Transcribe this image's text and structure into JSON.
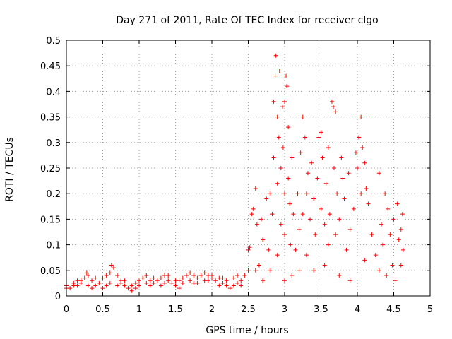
{
  "chart_data": {
    "type": "scatter",
    "title": "Day 271 of 2011, Rate Of TEC Index for receiver clgo",
    "xlabel": "GPS time / hours",
    "ylabel": "ROTI / TECUs",
    "xlim": [
      0,
      5
    ],
    "ylim": [
      0,
      0.5
    ],
    "xticks": [
      "0",
      "0.5",
      "1",
      "1.5",
      "2",
      "2.5",
      "3",
      "3.5",
      "4",
      "4.5",
      "5"
    ],
    "yticks": [
      "0",
      "0.05",
      "0.1",
      "0.15",
      "0.2",
      "0.25",
      "0.3",
      "0.35",
      "0.4",
      "0.45",
      "0.5"
    ],
    "grid": true,
    "marker": "+",
    "color": "#ff0000",
    "series": [
      {
        "name": "ROTI",
        "points": [
          [
            0.0,
            0.02
          ],
          [
            0.05,
            0.015
          ],
          [
            0.1,
            0.025
          ],
          [
            0.15,
            0.02
          ],
          [
            0.2,
            0.03
          ],
          [
            0.25,
            0.035
          ],
          [
            0.28,
            0.045
          ],
          [
            0.3,
            0.04
          ],
          [
            0.35,
            0.03
          ],
          [
            0.4,
            0.02
          ],
          [
            0.45,
            0.025
          ],
          [
            0.5,
            0.035
          ],
          [
            0.55,
            0.04
          ],
          [
            0.6,
            0.045
          ],
          [
            0.62,
            0.06
          ],
          [
            0.65,
            0.055
          ],
          [
            0.7,
            0.04
          ],
          [
            0.75,
            0.03
          ],
          [
            0.8,
            0.02
          ],
          [
            0.85,
            0.015
          ],
          [
            0.9,
            0.02
          ],
          [
            0.95,
            0.025
          ],
          [
            1.0,
            0.03
          ],
          [
            1.05,
            0.035
          ],
          [
            1.1,
            0.04
          ],
          [
            1.15,
            0.03
          ],
          [
            1.2,
            0.025
          ],
          [
            1.25,
            0.03
          ],
          [
            1.3,
            0.035
          ],
          [
            1.35,
            0.04
          ],
          [
            1.4,
            0.03
          ],
          [
            1.45,
            0.025
          ],
          [
            1.5,
            0.02
          ],
          [
            1.55,
            0.03
          ],
          [
            1.6,
            0.035
          ],
          [
            1.65,
            0.04
          ],
          [
            1.7,
            0.045
          ],
          [
            1.75,
            0.04
          ],
          [
            1.8,
            0.035
          ],
          [
            1.85,
            0.04
          ],
          [
            1.9,
            0.045
          ],
          [
            1.95,
            0.04
          ],
          [
            2.0,
            0.035
          ],
          [
            2.05,
            0.03
          ],
          [
            2.1,
            0.035
          ],
          [
            2.15,
            0.025
          ],
          [
            2.2,
            0.02
          ],
          [
            2.25,
            0.015
          ],
          [
            2.3,
            0.02
          ],
          [
            2.35,
            0.025
          ],
          [
            2.4,
            0.03
          ],
          [
            2.45,
            0.04
          ],
          [
            2.5,
            0.05
          ],
          [
            0.0,
            0.015
          ],
          [
            0.1,
            0.02
          ],
          [
            0.2,
            0.025
          ],
          [
            0.3,
            0.02
          ],
          [
            0.4,
            0.035
          ],
          [
            0.5,
            0.015
          ],
          [
            0.6,
            0.025
          ],
          [
            0.7,
            0.02
          ],
          [
            0.8,
            0.03
          ],
          [
            0.9,
            0.01
          ],
          [
            1.0,
            0.02
          ],
          [
            1.1,
            0.025
          ],
          [
            1.2,
            0.035
          ],
          [
            1.3,
            0.02
          ],
          [
            1.4,
            0.04
          ],
          [
            1.5,
            0.03
          ],
          [
            1.6,
            0.025
          ],
          [
            1.7,
            0.03
          ],
          [
            1.8,
            0.025
          ],
          [
            1.9,
            0.03
          ],
          [
            2.0,
            0.04
          ],
          [
            2.1,
            0.02
          ],
          [
            2.2,
            0.03
          ],
          [
            2.3,
            0.035
          ],
          [
            2.4,
            0.02
          ],
          [
            0.15,
            0.03
          ],
          [
            0.35,
            0.015
          ],
          [
            0.55,
            0.02
          ],
          [
            0.75,
            0.025
          ],
          [
            0.95,
            0.015
          ],
          [
            1.15,
            0.02
          ],
          [
            1.35,
            0.025
          ],
          [
            1.55,
            0.015
          ],
          [
            1.75,
            0.025
          ],
          [
            1.95,
            0.03
          ],
          [
            2.15,
            0.035
          ],
          [
            2.35,
            0.04
          ],
          [
            2.5,
            0.09
          ],
          [
            2.52,
            0.095
          ],
          [
            2.55,
            0.16
          ],
          [
            2.57,
            0.17
          ],
          [
            2.6,
            0.21
          ],
          [
            2.6,
            0.05
          ],
          [
            2.62,
            0.14
          ],
          [
            2.65,
            0.06
          ],
          [
            2.68,
            0.15
          ],
          [
            2.7,
            0.11
          ],
          [
            2.7,
            0.03
          ],
          [
            2.75,
            0.19
          ],
          [
            2.78,
            0.09
          ],
          [
            2.8,
            0.2
          ],
          [
            2.8,
            0.05
          ],
          [
            2.83,
            0.16
          ],
          [
            2.85,
            0.38
          ],
          [
            2.85,
            0.27
          ],
          [
            2.87,
            0.43
          ],
          [
            2.88,
            0.47
          ],
          [
            2.9,
            0.35
          ],
          [
            2.9,
            0.22
          ],
          [
            2.9,
            0.08
          ],
          [
            2.92,
            0.31
          ],
          [
            2.93,
            0.44
          ],
          [
            2.95,
            0.25
          ],
          [
            2.95,
            0.14
          ],
          [
            2.97,
            0.37
          ],
          [
            2.98,
            0.29
          ],
          [
            3.0,
            0.38
          ],
          [
            3.0,
            0.2
          ],
          [
            3.0,
            0.12
          ],
          [
            3.0,
            0.03
          ],
          [
            3.02,
            0.43
          ],
          [
            3.03,
            0.41
          ],
          [
            3.05,
            0.33
          ],
          [
            3.05,
            0.23
          ],
          [
            3.07,
            0.18
          ],
          [
            3.08,
            0.1
          ],
          [
            3.1,
            0.27
          ],
          [
            3.1,
            0.04
          ],
          [
            3.12,
            0.16
          ],
          [
            3.15,
            0.09
          ],
          [
            3.18,
            0.2
          ],
          [
            3.2,
            0.13
          ],
          [
            3.2,
            0.05
          ],
          [
            3.22,
            0.28
          ],
          [
            3.25,
            0.35
          ],
          [
            3.25,
            0.16
          ],
          [
            3.28,
            0.31
          ],
          [
            3.3,
            0.2
          ],
          [
            3.3,
            0.08
          ],
          [
            3.32,
            0.24
          ],
          [
            3.35,
            0.15
          ],
          [
            3.37,
            0.26
          ],
          [
            3.4,
            0.19
          ],
          [
            3.4,
            0.05
          ],
          [
            3.42,
            0.12
          ],
          [
            3.45,
            0.23
          ],
          [
            3.47,
            0.31
          ],
          [
            3.5,
            0.32
          ],
          [
            3.5,
            0.17
          ],
          [
            3.52,
            0.27
          ],
          [
            3.55,
            0.14
          ],
          [
            3.55,
            0.06
          ],
          [
            3.57,
            0.22
          ],
          [
            3.6,
            0.29
          ],
          [
            3.6,
            0.1
          ],
          [
            3.62,
            0.16
          ],
          [
            3.65,
            0.38
          ],
          [
            3.67,
            0.37
          ],
          [
            3.68,
            0.25
          ],
          [
            3.7,
            0.36
          ],
          [
            3.7,
            0.12
          ],
          [
            3.72,
            0.2
          ],
          [
            3.75,
            0.15
          ],
          [
            3.75,
            0.04
          ],
          [
            3.78,
            0.27
          ],
          [
            3.8,
            0.23
          ],
          [
            3.82,
            0.19
          ],
          [
            3.85,
            0.09
          ],
          [
            3.88,
            0.24
          ],
          [
            3.9,
            0.13
          ],
          [
            3.9,
            0.03
          ],
          [
            3.95,
            0.17
          ],
          [
            3.98,
            0.28
          ],
          [
            4.0,
            0.25
          ],
          [
            4.02,
            0.31
          ],
          [
            4.05,
            0.35
          ],
          [
            4.05,
            0.2
          ],
          [
            4.07,
            0.29
          ],
          [
            4.1,
            0.26
          ],
          [
            4.1,
            0.07
          ],
          [
            4.12,
            0.21
          ],
          [
            4.15,
            0.18
          ],
          [
            4.2,
            0.12
          ],
          [
            4.25,
            0.08
          ],
          [
            4.3,
            0.24
          ],
          [
            4.3,
            0.05
          ],
          [
            4.33,
            0.14
          ],
          [
            4.35,
            0.1
          ],
          [
            4.38,
            0.2
          ],
          [
            4.4,
            0.04
          ],
          [
            4.42,
            0.17
          ],
          [
            4.45,
            0.12
          ],
          [
            4.48,
            0.06
          ],
          [
            4.5,
            0.15
          ],
          [
            4.52,
            0.03
          ],
          [
            4.55,
            0.18
          ],
          [
            4.57,
            0.11
          ],
          [
            4.6,
            0.13
          ],
          [
            4.6,
            0.06
          ],
          [
            4.62,
            0.16
          ],
          [
            4.63,
            0.09
          ]
        ]
      }
    ]
  }
}
